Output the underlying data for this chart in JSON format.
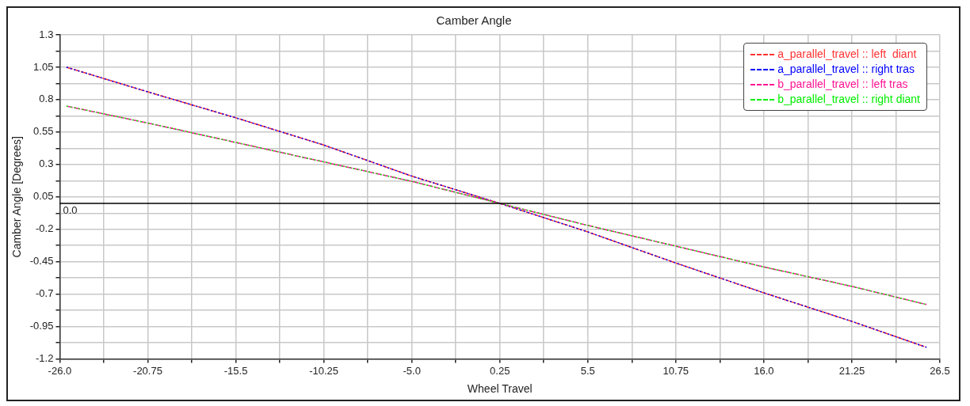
{
  "chart_data": {
    "type": "line",
    "title": "Camber Angle",
    "xlabel": "Wheel Travel",
    "ylabel": "Camber Angle [Degrees]",
    "x": [
      -25.6,
      -20.75,
      -15.5,
      -10.25,
      -5,
      0.25,
      5.5,
      10.75,
      16,
      21.25,
      25.7
    ],
    "series": [
      {
        "name": "a_parallel_travel :: left  diant",
        "color": "#ff3333",
        "line_style": "dashed",
        "values": [
          1.05,
          0.86,
          0.66,
          0.45,
          0.21,
          0.0,
          -0.22,
          -0.46,
          -0.69,
          -0.91,
          -1.11
        ]
      },
      {
        "name": "a_parallel_travel :: right tras",
        "color": "#0000ff",
        "line_style": "dashed",
        "values": [
          1.05,
          0.86,
          0.66,
          0.45,
          0.21,
          0.0,
          -0.22,
          -0.46,
          -0.69,
          -0.91,
          -1.11
        ]
      },
      {
        "name": "b_parallel_travel :: left tras",
        "color": "#ff1493",
        "line_style": "dashed",
        "values": [
          0.75,
          0.62,
          0.47,
          0.32,
          0.17,
          0.0,
          -0.17,
          -0.33,
          -0.49,
          -0.64,
          -0.78
        ]
      },
      {
        "name": "b_parallel_travel :: right diant",
        "color": "#00ee00",
        "line_style": "dashed",
        "values": [
          0.75,
          0.62,
          0.47,
          0.32,
          0.17,
          0.0,
          -0.17,
          -0.33,
          -0.49,
          -0.64,
          -0.78
        ]
      }
    ],
    "xlim": [
      -26,
      26.5
    ],
    "xticks": [
      {
        "value": -26,
        "label": "-26.0"
      },
      {
        "value": -23.375,
        "label": null
      },
      -20.75,
      {
        "value": -18.125,
        "label": null
      },
      -15.5,
      {
        "value": -12.875,
        "label": null
      },
      -10.25,
      {
        "value": -7.625,
        "label": null
      },
      {
        "value": -5,
        "label": "-5.0"
      },
      {
        "value": -2.375,
        "label": null
      },
      0.25,
      {
        "value": 2.875,
        "label": null
      },
      5.5,
      {
        "value": 8.125,
        "label": null
      },
      10.75,
      {
        "value": 13.375,
        "label": null
      },
      {
        "value": 16,
        "label": "16.0"
      },
      {
        "value": 18.625,
        "label": null
      },
      21.25,
      {
        "value": 23.875,
        "label": null
      },
      26.5
    ],
    "ylim": [
      -1.2,
      1.3
    ],
    "yticks": [
      -1.2,
      {
        "value": -1.075,
        "label": null
      },
      -0.95,
      {
        "value": -0.825,
        "label": null
      },
      -0.7,
      {
        "value": -0.575,
        "label": null
      },
      -0.45,
      {
        "value": -0.325,
        "label": null
      },
      -0.2,
      {
        "value": -0.075,
        "label": null
      },
      0.05,
      {
        "value": 0.175,
        "label": null
      },
      0.3,
      {
        "value": 0.425,
        "label": null
      },
      0.55,
      {
        "value": 0.675,
        "label": null
      },
      0.8,
      {
        "value": 0.925,
        "label": null
      },
      1.05,
      {
        "value": 1.175,
        "label": null
      },
      1.3
    ],
    "ref_lines": [
      {
        "axis": "y",
        "value": 0,
        "label": "0.0",
        "color": "#000000"
      }
    ],
    "grid": true,
    "legend": "top right",
    "marker": "none"
  }
}
